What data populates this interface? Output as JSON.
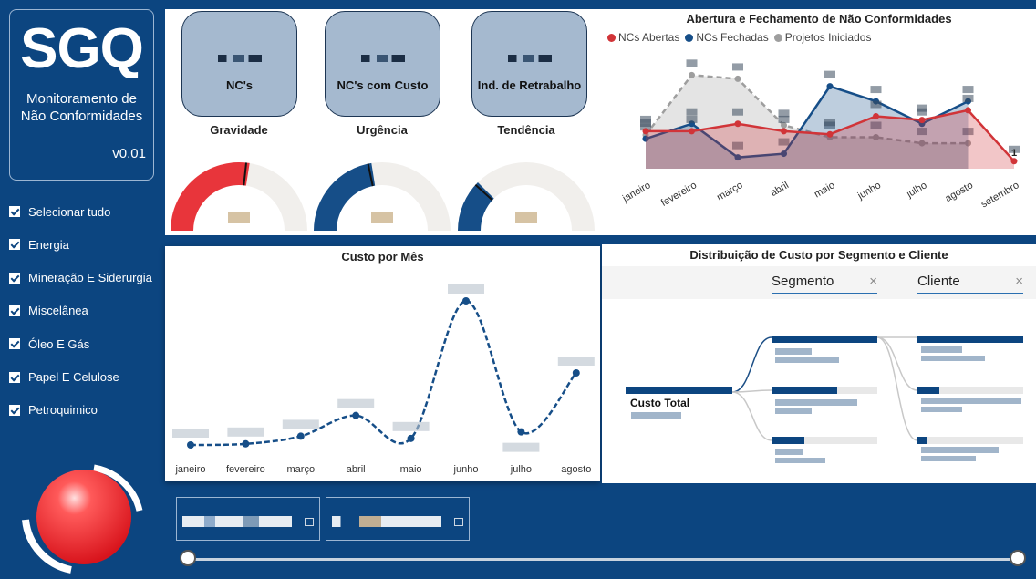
{
  "app": {
    "logo": "SGQ",
    "subtitle_line1": "Monitoramento de",
    "subtitle_line2": "Não Conformidades",
    "version": "v0.01"
  },
  "segments": [
    {
      "label": "Selecionar tudo",
      "checked": true
    },
    {
      "label": "Energia",
      "checked": true
    },
    {
      "label": "Mineração E Siderurgia",
      "checked": true
    },
    {
      "label": "Miscelânea",
      "checked": true
    },
    {
      "label": "Óleo E Gás",
      "checked": true
    },
    {
      "label": "Papel E Celulose",
      "checked": true
    },
    {
      "label": "Petroquimico",
      "checked": true
    }
  ],
  "kpis": [
    {
      "label": "NC's"
    },
    {
      "label": "NC's com Custo"
    },
    {
      "label": "Ind. de Retrabalho"
    }
  ],
  "gauges": [
    {
      "title": "Gravidade",
      "fill": 0.55,
      "color": "#e8353b"
    },
    {
      "title": "Urgência",
      "fill": 0.45,
      "color": "#164e88"
    },
    {
      "title": "Tendência",
      "fill": 0.25,
      "color": "#164e88"
    }
  ],
  "chart_data": [
    {
      "type": "area",
      "title": "Abertura e Fechamento de Não Conformidades",
      "categories": [
        "janeiro",
        "fevereiro",
        "março",
        "abril",
        "maio",
        "junho",
        "julho",
        "agosto",
        "setembro"
      ],
      "series": [
        {
          "name": "NCs Abertas",
          "color": "#d13438",
          "values": [
            5,
            5,
            6,
            5,
            4.6,
            7,
            6.5,
            7.8,
            1
          ]
        },
        {
          "name": "NCs Fechadas",
          "color": "#164e88",
          "values": [
            4,
            6,
            1.5,
            2,
            11,
            9,
            6,
            9,
            null
          ]
        },
        {
          "name": "Projetos Iniciados",
          "color": "#9e9e9e",
          "values": [
            4.5,
            12.5,
            12,
            5.8,
            4.2,
            4.2,
            3.4,
            3.4,
            null
          ]
        }
      ],
      "end_label": "1"
    },
    {
      "type": "line",
      "title": "Custo por Mês",
      "categories": [
        "janeiro",
        "fevereiro",
        "março",
        "abril",
        "maio",
        "junho",
        "julho",
        "agosto"
      ],
      "values": [
        0.0,
        0.05,
        0.4,
        1.35,
        0.3,
        6.6,
        0.6,
        3.3
      ],
      "color": "#164e88"
    }
  ],
  "decomp": {
    "title": "Distribuição de Custo por Segmento e Cliente",
    "field1": "Segmento",
    "field2": "Cliente",
    "clear": "×",
    "root_label": "Custo Total"
  },
  "colors": {
    "background": "#0c4580",
    "accent_red": "#d13438",
    "accent_blue": "#164e88"
  }
}
